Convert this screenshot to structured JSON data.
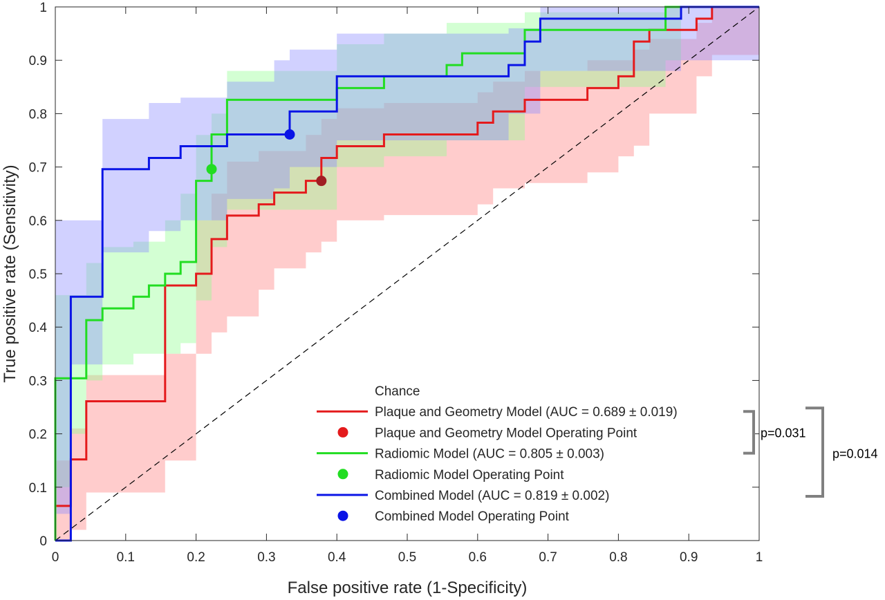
{
  "chart_data": {
    "type": "line",
    "title": "",
    "xlabel": "False positive rate (1-Specificity)",
    "ylabel": "True positive rate (Sensitivity)",
    "xlim": [
      0,
      1
    ],
    "ylim": [
      0,
      1
    ],
    "xticks": [
      0,
      0.1,
      0.2,
      0.3,
      0.4,
      0.5,
      0.6,
      0.7,
      0.8,
      0.9,
      1
    ],
    "yticks": [
      0,
      0.1,
      0.2,
      0.3,
      0.4,
      0.5,
      0.6,
      0.7,
      0.8,
      0.9,
      1
    ],
    "xtick_labels": [
      "0",
      "0.1",
      "0.2",
      "0.3",
      "0.4",
      "0.5",
      "0.6",
      "0.7",
      "0.8",
      "0.9",
      "1"
    ],
    "ytick_labels": [
      "0",
      "0.1",
      "0.2",
      "0.3",
      "0.4",
      "0.5",
      "0.6",
      "0.7",
      "0.8",
      "0.9",
      "1"
    ],
    "grid": false,
    "legend_position": "bottom-right",
    "chance": {
      "name": "Chance",
      "x": [
        0,
        1
      ],
      "y": [
        0,
        1
      ],
      "color": "#000000",
      "style": "dashed"
    },
    "series": [
      {
        "name": "Plaque and Geometry Model (AUC = 0.689 ± 0.019)",
        "color": "#e41a1c",
        "band_color": "#ff8080",
        "x": [
          0,
          0,
          0.022,
          0.022,
          0.044,
          0.044,
          0.156,
          0.156,
          0.2,
          0.2,
          0.222,
          0.222,
          0.244,
          0.244,
          0.289,
          0.289,
          0.311,
          0.311,
          0.356,
          0.356,
          0.378,
          0.378,
          0.4,
          0.4,
          0.467,
          0.467,
          0.6,
          0.6,
          0.622,
          0.622,
          0.667,
          0.667,
          0.756,
          0.756,
          0.8,
          0.8,
          0.822,
          0.822,
          0.844,
          0.844,
          0.911,
          0.911,
          0.933,
          0.933,
          1
        ],
        "y": [
          0,
          0.065,
          0.065,
          0.152,
          0.152,
          0.261,
          0.261,
          0.478,
          0.478,
          0.5,
          0.5,
          0.565,
          0.565,
          0.609,
          0.609,
          0.63,
          0.63,
          0.652,
          0.652,
          0.674,
          0.674,
          0.717,
          0.717,
          0.739,
          0.739,
          0.761,
          0.761,
          0.783,
          0.783,
          0.804,
          0.804,
          0.826,
          0.826,
          0.848,
          0.848,
          0.87,
          0.87,
          0.935,
          0.935,
          0.957,
          0.957,
          0.978,
          0.978,
          1,
          1
        ],
        "band_x": [
          0,
          0.022,
          0.044,
          0.156,
          0.2,
          0.222,
          0.244,
          0.289,
          0.311,
          0.356,
          0.378,
          0.4,
          0.467,
          0.6,
          0.622,
          0.667,
          0.756,
          0.8,
          0.822,
          0.844,
          0.911,
          0.933,
          1
        ],
        "band_lower": [
          0,
          0.02,
          0.09,
          0.15,
          0.35,
          0.39,
          0.42,
          0.47,
          0.51,
          0.54,
          0.56,
          0.6,
          0.61,
          0.63,
          0.66,
          0.67,
          0.69,
          0.72,
          0.74,
          0.8,
          0.87,
          0.91,
          1
        ],
        "band_upper": [
          0.15,
          0.21,
          0.31,
          0.35,
          0.6,
          0.65,
          0.71,
          0.73,
          0.73,
          0.76,
          0.79,
          0.81,
          0.82,
          0.84,
          0.86,
          0.88,
          0.9,
          0.9,
          0.92,
          0.94,
          0.97,
          1,
          1
        ]
      },
      {
        "name": "Radiomic Model (AUC = 0.805 ± 0.003)",
        "color": "#22dd22",
        "band_color": "#90ff90",
        "x": [
          0,
          0,
          0.022,
          0.022,
          0.044,
          0.044,
          0.067,
          0.067,
          0.111,
          0.111,
          0.133,
          0.133,
          0.156,
          0.156,
          0.178,
          0.178,
          0.2,
          0.2,
          0.222,
          0.222,
          0.244,
          0.244,
          0.4,
          0.4,
          0.467,
          0.467,
          0.556,
          0.556,
          0.578,
          0.578,
          0.667,
          0.667,
          0.867,
          0.867,
          0.889,
          0.889,
          1
        ],
        "y": [
          0,
          0.304,
          0.304,
          0.304,
          0.304,
          0.413,
          0.413,
          0.435,
          0.435,
          0.457,
          0.457,
          0.478,
          0.478,
          0.5,
          0.5,
          0.522,
          0.522,
          0.674,
          0.674,
          0.761,
          0.761,
          0.826,
          0.826,
          0.848,
          0.848,
          0.87,
          0.87,
          0.891,
          0.891,
          0.913,
          0.913,
          0.957,
          0.957,
          1,
          1,
          1,
          1
        ],
        "band_x": [
          0,
          0.022,
          0.044,
          0.067,
          0.111,
          0.156,
          0.178,
          0.2,
          0.222,
          0.244,
          0.4,
          0.467,
          0.556,
          0.667,
          0.867,
          0.889,
          1
        ],
        "band_lower": [
          0.1,
          0.2,
          0.3,
          0.33,
          0.35,
          0.35,
          0.37,
          0.45,
          0.55,
          0.62,
          0.7,
          0.72,
          0.75,
          0.85,
          0.9,
          1,
          1
        ],
        "band_upper": [
          0.46,
          0.46,
          0.52,
          0.55,
          0.56,
          0.6,
          0.65,
          0.76,
          0.8,
          0.88,
          0.93,
          0.95,
          0.97,
          0.99,
          1,
          1,
          1
        ]
      },
      {
        "name": "Combined Model (AUC = 0.819 ± 0.002)",
        "color": "#0a14e6",
        "band_color": "#8c8cff",
        "x": [
          0,
          0.022,
          0.022,
          0.067,
          0.067,
          0.133,
          0.133,
          0.178,
          0.178,
          0.244,
          0.244,
          0.311,
          0.311,
          0.333,
          0.333,
          0.4,
          0.4,
          0.644,
          0.644,
          0.667,
          0.667,
          0.689,
          0.689,
          0.889,
          0.889,
          1
        ],
        "y": [
          0,
          0,
          0.457,
          0.457,
          0.696,
          0.696,
          0.717,
          0.717,
          0.739,
          0.739,
          0.761,
          0.761,
          0.761,
          0.761,
          0.804,
          0.804,
          0.87,
          0.87,
          0.891,
          0.891,
          0.935,
          0.935,
          0.978,
          0.978,
          1,
          1
        ],
        "band_x": [
          0,
          0.022,
          0.067,
          0.133,
          0.178,
          0.244,
          0.311,
          0.333,
          0.4,
          0.644,
          0.689,
          0.889,
          1
        ],
        "band_lower": [
          0.05,
          0.33,
          0.54,
          0.58,
          0.6,
          0.64,
          0.66,
          0.7,
          0.75,
          0.8,
          0.88,
          0.9,
          1
        ],
        "band_upper": [
          0.6,
          0.6,
          0.79,
          0.82,
          0.83,
          0.86,
          0.9,
          0.92,
          0.95,
          0.96,
          1,
          1,
          1
        ]
      }
    ],
    "operating_points": [
      {
        "name": "Plaque and Geometry Model Operating Point",
        "x": 0.378,
        "y": 0.674,
        "color": "#e41a1c",
        "marker_color": "#a01e23"
      },
      {
        "name": "Radiomic Model Operating Point",
        "x": 0.222,
        "y": 0.696,
        "color": "#22dd22",
        "marker_color": "#22dd22"
      },
      {
        "name": "Combined Model Operating Point",
        "x": 0.333,
        "y": 0.761,
        "color": "#0a14e6",
        "marker_color": "#0a14e6"
      }
    ],
    "legend_order": [
      "chance",
      "s0",
      "p0",
      "s1",
      "p1",
      "s2",
      "p2"
    ],
    "annotations": [
      {
        "text": "p=0.031",
        "between": [
          "Plaque and Geometry Model",
          "Radiomic Model"
        ]
      },
      {
        "text": "p=0.014",
        "between": [
          "Plaque and Geometry Model",
          "Combined Model"
        ]
      }
    ]
  }
}
